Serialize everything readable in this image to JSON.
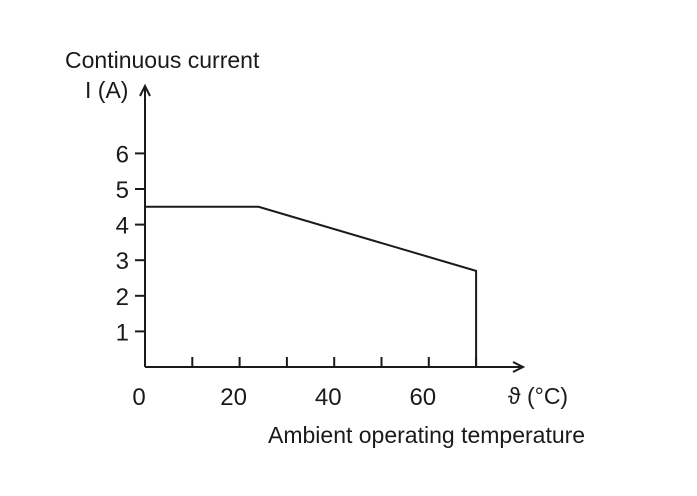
{
  "chart_data": {
    "type": "line",
    "ytitle_line1": "Continuous current",
    "ylabel": "I (A)",
    "xunit_label": "ϑ (°C)",
    "xlabel": "Ambient operating temperature",
    "xlim": [
      0,
      80
    ],
    "ylim": [
      0,
      6
    ],
    "x_ticks": [
      0,
      10,
      20,
      30,
      40,
      50,
      60,
      70
    ],
    "x_tick_labels": [
      {
        "value": 0,
        "label": "0"
      },
      {
        "value": 20,
        "label": "20"
      },
      {
        "value": 40,
        "label": "40"
      },
      {
        "value": 60,
        "label": "60"
      }
    ],
    "y_ticks": [
      1,
      2,
      3,
      4,
      5,
      6
    ],
    "y_tick_labels": [
      {
        "value": 1,
        "label": "1"
      },
      {
        "value": 2,
        "label": "2"
      },
      {
        "value": 3,
        "label": "3"
      },
      {
        "value": 4,
        "label": "4"
      },
      {
        "value": 5,
        "label": "5"
      },
      {
        "value": 6,
        "label": "6"
      }
    ],
    "series": [
      {
        "x": [
          0,
          24,
          70,
          70
        ],
        "y": [
          4.5,
          4.5,
          2.7,
          0
        ]
      }
    ],
    "grid": false,
    "legend": "none",
    "colors": {
      "line": "#1a1a1a",
      "background": "#ffffff"
    }
  }
}
